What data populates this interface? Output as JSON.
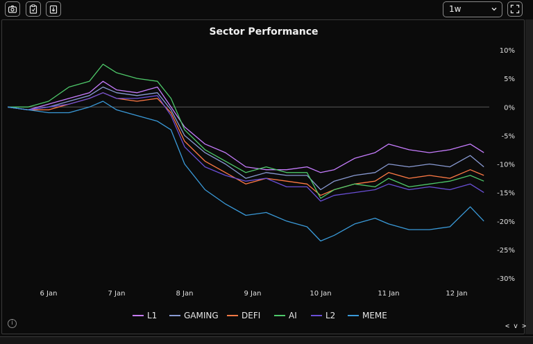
{
  "toolbar": {
    "buttons": [
      {
        "name": "screenshot-button",
        "icon": "camera-icon"
      },
      {
        "name": "copy-button",
        "icon": "clipboard-icon"
      },
      {
        "name": "download-button",
        "icon": "download-icon"
      }
    ],
    "timeframe": "1w",
    "fullscreen_icon": "fullscreen-icon"
  },
  "footer": {
    "info_icon": "i",
    "nav_label": "< v >"
  },
  "chart_data": {
    "type": "line",
    "title": "Sector Performance",
    "xlabel": "",
    "ylabel": "",
    "x_ticks": [
      "6 Jan",
      "7 Jan",
      "8 Jan",
      "9 Jan",
      "10 Jan",
      "11 Jan",
      "12 Jan"
    ],
    "x_range": [
      5.4,
      12.4
    ],
    "y_ticks": [
      "10%",
      "5%",
      "0%",
      "-5%",
      "-10%",
      "-15%",
      "-20%",
      "-25%",
      "-30%"
    ],
    "ylim": [
      -30,
      10
    ],
    "y_axis_side": "right",
    "grid": false,
    "zero_line": true,
    "legend_position": "bottom",
    "series": [
      {
        "name": "L1",
        "color": "#c77dff",
        "x": [
          5.4,
          5.7,
          6.0,
          6.3,
          6.6,
          6.8,
          7.0,
          7.3,
          7.6,
          7.8,
          8.0,
          8.3,
          8.6,
          8.9,
          9.2,
          9.5,
          9.8,
          10.0,
          10.2,
          10.5,
          10.8,
          11.0,
          11.3,
          11.6,
          11.9,
          12.2,
          12.4
        ],
        "y": [
          0,
          -0.5,
          0.5,
          1.5,
          2.5,
          4.5,
          3.0,
          2.5,
          3.5,
          0,
          -3.5,
          -6.5,
          -8.0,
          -10.5,
          -11.0,
          -11.0,
          -10.5,
          -11.5,
          -11.0,
          -9.0,
          -8.0,
          -6.5,
          -7.5,
          -8.0,
          -7.5,
          -6.5,
          -8.0
        ]
      },
      {
        "name": "GAMING",
        "color": "#8a9bd4",
        "x": [
          5.4,
          5.7,
          6.0,
          6.3,
          6.6,
          6.8,
          7.0,
          7.3,
          7.6,
          7.8,
          8.0,
          8.3,
          8.6,
          8.9,
          9.2,
          9.5,
          9.8,
          10.0,
          10.2,
          10.5,
          10.8,
          11.0,
          11.3,
          11.6,
          11.9,
          12.2,
          12.4
        ],
        "y": [
          0,
          -0.5,
          0,
          1.0,
          2.0,
          3.5,
          2.5,
          2.0,
          2.5,
          -0.5,
          -5.0,
          -8.0,
          -10.0,
          -12.5,
          -11.5,
          -12.0,
          -12.0,
          -14.5,
          -13.0,
          -12.0,
          -11.5,
          -10.0,
          -10.5,
          -10.0,
          -10.5,
          -8.5,
          -10.5
        ]
      },
      {
        "name": "DEFI",
        "color": "#ff7a45",
        "x": [
          5.4,
          5.7,
          6.0,
          6.3,
          6.6,
          6.8,
          7.0,
          7.3,
          7.6,
          7.8,
          8.0,
          8.3,
          8.6,
          8.9,
          9.2,
          9.5,
          9.8,
          10.0,
          10.2,
          10.5,
          10.8,
          11.0,
          11.3,
          11.6,
          11.9,
          12.2,
          12.4
        ],
        "y": [
          0,
          -0.5,
          -0.5,
          0.5,
          1.5,
          2.5,
          1.5,
          1.0,
          1.5,
          -1.0,
          -6.0,
          -9.5,
          -11.5,
          -13.5,
          -12.5,
          -13.0,
          -13.5,
          -15.5,
          -14.5,
          -13.5,
          -13.0,
          -11.5,
          -12.5,
          -12.0,
          -12.5,
          -11.0,
          -12.0
        ]
      },
      {
        "name": "AI",
        "color": "#4ec96a",
        "x": [
          5.4,
          5.7,
          6.0,
          6.3,
          6.6,
          6.8,
          7.0,
          7.3,
          7.6,
          7.8,
          8.0,
          8.3,
          8.6,
          8.9,
          9.2,
          9.5,
          9.8,
          10.0,
          10.2,
          10.5,
          10.8,
          11.0,
          11.3,
          11.6,
          11.9,
          12.2,
          12.4
        ],
        "y": [
          0,
          0,
          1.0,
          3.5,
          4.5,
          7.5,
          6.0,
          5.0,
          4.5,
          1.5,
          -4.0,
          -7.5,
          -9.5,
          -11.5,
          -10.5,
          -11.5,
          -11.5,
          -16.0,
          -14.5,
          -13.5,
          -14.0,
          -12.5,
          -14.0,
          -13.5,
          -13.0,
          -12.0,
          -13.0
        ]
      },
      {
        "name": "L2",
        "color": "#6a4fd6",
        "x": [
          5.4,
          5.7,
          6.0,
          6.3,
          6.6,
          6.8,
          7.0,
          7.3,
          7.6,
          7.8,
          8.0,
          8.3,
          8.6,
          8.9,
          9.2,
          9.5,
          9.8,
          10.0,
          10.2,
          10.5,
          10.8,
          11.0,
          11.3,
          11.6,
          11.9,
          12.2,
          12.4
        ],
        "y": [
          0,
          -0.5,
          0,
          0.5,
          1.5,
          2.5,
          1.5,
          1.5,
          2.0,
          -1.5,
          -7.0,
          -10.5,
          -12.0,
          -13.0,
          -12.5,
          -14.0,
          -14.0,
          -16.5,
          -15.5,
          -15.0,
          -14.5,
          -13.5,
          -14.5,
          -14.0,
          -14.5,
          -13.5,
          -15.0
        ]
      },
      {
        "name": "MEME",
        "color": "#3a9ad9",
        "x": [
          5.4,
          5.7,
          6.0,
          6.3,
          6.6,
          6.8,
          7.0,
          7.3,
          7.6,
          7.8,
          8.0,
          8.3,
          8.6,
          8.9,
          9.2,
          9.5,
          9.8,
          10.0,
          10.2,
          10.5,
          10.8,
          11.0,
          11.3,
          11.6,
          11.9,
          12.2,
          12.4
        ],
        "y": [
          0,
          -0.5,
          -1.0,
          -1.0,
          0,
          1.0,
          -0.5,
          -1.5,
          -2.5,
          -4.0,
          -10.0,
          -14.5,
          -17.0,
          -19.0,
          -18.5,
          -20.0,
          -21.0,
          -23.5,
          -22.5,
          -20.5,
          -19.5,
          -20.5,
          -21.5,
          -21.5,
          -21.0,
          -17.5,
          -20.0
        ]
      }
    ]
  }
}
